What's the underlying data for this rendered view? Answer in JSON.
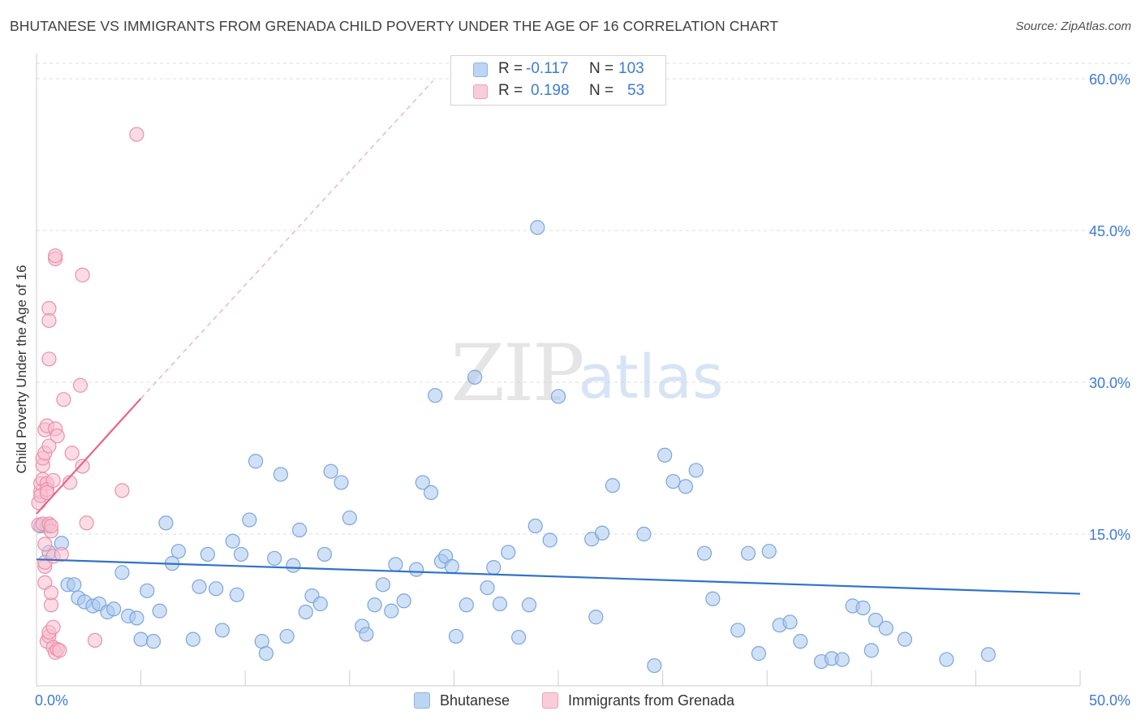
{
  "chart_data": {
    "type": "scatter",
    "title": "BHUTANESE VS IMMIGRANTS FROM GRENADA CHILD POVERTY UNDER THE AGE OF 16 CORRELATION CHART",
    "source": "Source: ZipAtlas.com",
    "ylabel": "Child Poverty Under the Age of 16",
    "xlim": [
      0,
      50
    ],
    "ylim": [
      0,
      60
    ],
    "x_ticks": [
      "0.0%",
      "50.0%"
    ],
    "y_ticks": [
      "15.0%",
      "30.0%",
      "45.0%",
      "60.0%"
    ],
    "y_tick_values": [
      15,
      30,
      45,
      60
    ],
    "watermark": "ZIPatlas",
    "legend": {
      "rows": [
        {
          "r_label": "R =",
          "r_value": "-0.117",
          "n_label": "N =",
          "n_value": "103"
        },
        {
          "r_label": "R =",
          "r_value": "0.198",
          "n_label": "N =",
          "n_value": "53"
        }
      ]
    },
    "series": [
      {
        "name": "Bhutanese",
        "color": "#a9c8f0",
        "stroke": "#7aa6dc",
        "trend_color": "#2f73c9",
        "trend": {
          "x0": 0,
          "y0": 12.5,
          "x1": 50,
          "y1": 9.1
        },
        "points": [
          [
            0.2,
            15.8
          ],
          [
            0.5,
            15.8
          ],
          [
            0.6,
            13.2
          ],
          [
            1.2,
            14.1
          ],
          [
            1.5,
            10.0
          ],
          [
            1.8,
            10.0
          ],
          [
            2.0,
            8.7
          ],
          [
            2.3,
            8.3
          ],
          [
            2.7,
            7.9
          ],
          [
            3.0,
            8.1
          ],
          [
            3.4,
            7.3
          ],
          [
            3.7,
            7.6
          ],
          [
            4.1,
            11.2
          ],
          [
            4.4,
            6.9
          ],
          [
            4.8,
            6.7
          ],
          [
            5.0,
            4.6
          ],
          [
            5.3,
            9.4
          ],
          [
            5.6,
            4.4
          ],
          [
            5.9,
            7.4
          ],
          [
            6.2,
            16.1
          ],
          [
            6.5,
            12.1
          ],
          [
            6.8,
            13.3
          ],
          [
            7.5,
            4.6
          ],
          [
            7.8,
            9.8
          ],
          [
            8.2,
            13.0
          ],
          [
            8.6,
            9.6
          ],
          [
            8.9,
            5.5
          ],
          [
            9.4,
            14.3
          ],
          [
            9.6,
            9.0
          ],
          [
            9.8,
            13.0
          ],
          [
            10.2,
            16.4
          ],
          [
            10.5,
            22.2
          ],
          [
            10.8,
            4.4
          ],
          [
            11.0,
            3.2
          ],
          [
            11.4,
            12.6
          ],
          [
            11.7,
            20.9
          ],
          [
            12.0,
            4.9
          ],
          [
            12.3,
            11.9
          ],
          [
            12.6,
            15.4
          ],
          [
            12.9,
            7.3
          ],
          [
            13.2,
            8.9
          ],
          [
            13.6,
            8.1
          ],
          [
            13.8,
            13.0
          ],
          [
            14.1,
            21.2
          ],
          [
            14.6,
            20.1
          ],
          [
            15.0,
            16.6
          ],
          [
            15.6,
            5.9
          ],
          [
            15.8,
            5.1
          ],
          [
            16.2,
            8.0
          ],
          [
            16.6,
            10.0
          ],
          [
            17.0,
            7.4
          ],
          [
            17.2,
            12.0
          ],
          [
            17.6,
            8.4
          ],
          [
            18.2,
            11.5
          ],
          [
            18.5,
            20.1
          ],
          [
            18.9,
            19.1
          ],
          [
            19.1,
            28.7
          ],
          [
            19.4,
            12.3
          ],
          [
            19.6,
            12.8
          ],
          [
            19.9,
            11.8
          ],
          [
            20.1,
            4.9
          ],
          [
            20.6,
            8.0
          ],
          [
            21.0,
            30.5
          ],
          [
            21.6,
            9.7
          ],
          [
            21.9,
            11.7
          ],
          [
            22.2,
            8.1
          ],
          [
            22.6,
            13.2
          ],
          [
            23.1,
            4.8
          ],
          [
            23.6,
            8.0
          ],
          [
            23.9,
            15.8
          ],
          [
            24.0,
            45.3
          ],
          [
            24.6,
            14.4
          ],
          [
            25.0,
            28.6
          ],
          [
            26.6,
            14.5
          ],
          [
            26.8,
            6.8
          ],
          [
            27.1,
            15.1
          ],
          [
            27.6,
            19.8
          ],
          [
            29.1,
            15.0
          ],
          [
            29.6,
            2.0
          ],
          [
            30.1,
            22.8
          ],
          [
            30.5,
            20.2
          ],
          [
            31.1,
            19.7
          ],
          [
            31.6,
            21.3
          ],
          [
            32.0,
            13.1
          ],
          [
            32.4,
            8.6
          ],
          [
            33.6,
            5.5
          ],
          [
            34.1,
            13.1
          ],
          [
            34.6,
            3.2
          ],
          [
            35.1,
            13.3
          ],
          [
            35.6,
            6.0
          ],
          [
            36.1,
            6.3
          ],
          [
            36.6,
            4.4
          ],
          [
            37.6,
            2.4
          ],
          [
            38.1,
            2.7
          ],
          [
            38.6,
            2.6
          ],
          [
            39.1,
            7.9
          ],
          [
            39.6,
            7.7
          ],
          [
            40.0,
            3.5
          ],
          [
            40.2,
            6.5
          ],
          [
            40.7,
            5.7
          ],
          [
            41.6,
            4.6
          ],
          [
            43.6,
            2.6
          ],
          [
            45.6,
            3.1
          ]
        ]
      },
      {
        "name": "Immigrants from Grenada",
        "color": "#f7bfcf",
        "stroke": "#eb8fab",
        "trend_color": "#e8638b",
        "trend": {
          "x0": 0,
          "y0": 17.0,
          "x1": 5.0,
          "y1": 28.4
        },
        "trend_ext": {
          "x0": 5.0,
          "y0": 28.4,
          "x1": 19.0,
          "y1": 59.8
        },
        "points": [
          [
            0.1,
            15.9
          ],
          [
            0.1,
            18.1
          ],
          [
            0.2,
            19.2
          ],
          [
            0.2,
            20.0
          ],
          [
            0.2,
            18.8
          ],
          [
            0.3,
            20.4
          ],
          [
            0.3,
            21.8
          ],
          [
            0.3,
            22.5
          ],
          [
            0.3,
            16.0
          ],
          [
            0.4,
            14.0
          ],
          [
            0.4,
            11.8
          ],
          [
            0.4,
            10.2
          ],
          [
            0.4,
            12.2
          ],
          [
            0.4,
            25.3
          ],
          [
            0.4,
            23.0
          ],
          [
            0.5,
            20.0
          ],
          [
            0.5,
            19.4
          ],
          [
            0.5,
            25.7
          ],
          [
            0.5,
            19.1
          ],
          [
            0.5,
            4.4
          ],
          [
            0.6,
            23.7
          ],
          [
            0.6,
            4.9
          ],
          [
            0.6,
            5.3
          ],
          [
            0.6,
            37.3
          ],
          [
            0.6,
            32.3
          ],
          [
            0.6,
            16.0
          ],
          [
            0.6,
            36.1
          ],
          [
            0.7,
            8.0
          ],
          [
            0.7,
            9.2
          ],
          [
            0.7,
            15.3
          ],
          [
            0.7,
            15.8
          ],
          [
            0.8,
            5.8
          ],
          [
            0.8,
            3.8
          ],
          [
            0.8,
            20.3
          ],
          [
            0.8,
            12.8
          ],
          [
            0.9,
            25.4
          ],
          [
            0.9,
            3.3
          ],
          [
            0.9,
            42.2
          ],
          [
            0.9,
            42.5
          ],
          [
            1.0,
            24.7
          ],
          [
            1.0,
            3.6
          ],
          [
            1.1,
            3.5
          ],
          [
            1.2,
            13.0
          ],
          [
            1.3,
            28.3
          ],
          [
            1.6,
            20.1
          ],
          [
            1.7,
            23.0
          ],
          [
            2.1,
            29.7
          ],
          [
            2.2,
            40.6
          ],
          [
            2.2,
            21.7
          ],
          [
            2.4,
            16.1
          ],
          [
            2.8,
            4.5
          ],
          [
            4.1,
            19.3
          ],
          [
            4.8,
            54.5
          ]
        ]
      }
    ]
  }
}
